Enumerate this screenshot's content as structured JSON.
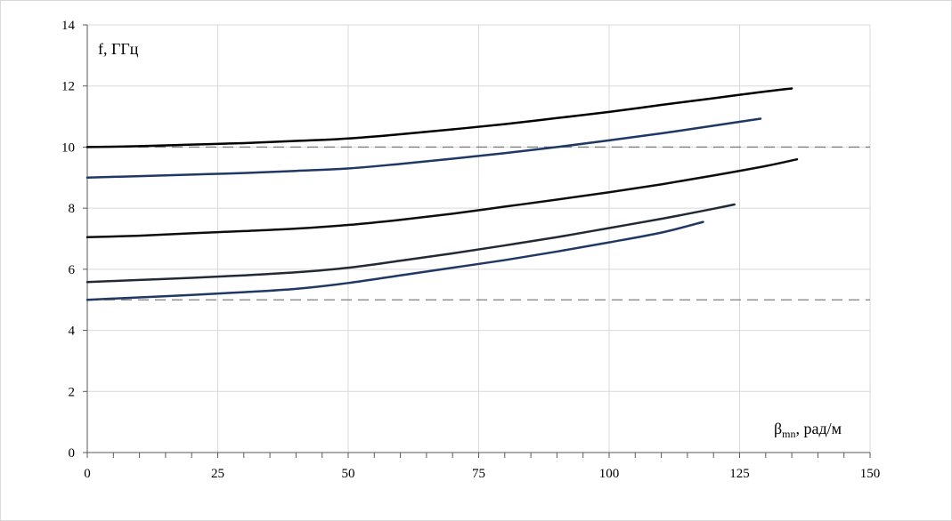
{
  "chart_data": {
    "type": "line",
    "title": "",
    "ylabel": "f, ГГц",
    "xlabel": {
      "symbol": "β",
      "subscript": "mn",
      "suffix": ", рад/м"
    },
    "xlim": [
      0,
      150
    ],
    "ylim": [
      0,
      14
    ],
    "x_ticks": [
      "0",
      "25",
      "50",
      "75",
      "100",
      "125",
      "150"
    ],
    "y_ticks": [
      "0",
      "2",
      "4",
      "6",
      "8",
      "10",
      "12",
      "14"
    ],
    "grid": true,
    "legend": "none",
    "reference_lines": [
      {
        "y": 10,
        "style": "dashed",
        "color": "#7f7f7f"
      },
      {
        "y": 5,
        "style": "dashed",
        "color": "#7f7f7f"
      }
    ],
    "series": [
      {
        "color": "#000000",
        "points": [
          [
            0,
            10.0
          ],
          [
            10,
            10.03
          ],
          [
            20,
            10.08
          ],
          [
            30,
            10.13
          ],
          [
            40,
            10.2
          ],
          [
            50,
            10.28
          ],
          [
            60,
            10.42
          ],
          [
            70,
            10.58
          ],
          [
            80,
            10.75
          ],
          [
            90,
            10.95
          ],
          [
            100,
            11.15
          ],
          [
            110,
            11.38
          ],
          [
            120,
            11.6
          ],
          [
            130,
            11.82
          ],
          [
            135,
            11.92
          ]
        ]
      },
      {
        "color": "#1f3864",
        "points": [
          [
            0,
            9.0
          ],
          [
            10,
            9.05
          ],
          [
            20,
            9.1
          ],
          [
            30,
            9.15
          ],
          [
            40,
            9.22
          ],
          [
            50,
            9.3
          ],
          [
            60,
            9.45
          ],
          [
            70,
            9.62
          ],
          [
            80,
            9.8
          ],
          [
            90,
            10.0
          ],
          [
            100,
            10.22
          ],
          [
            110,
            10.45
          ],
          [
            120,
            10.7
          ],
          [
            129,
            10.93
          ]
        ]
      },
      {
        "color": "#0d0d0d",
        "points": [
          [
            0,
            7.05
          ],
          [
            10,
            7.1
          ],
          [
            20,
            7.18
          ],
          [
            30,
            7.25
          ],
          [
            40,
            7.33
          ],
          [
            50,
            7.45
          ],
          [
            60,
            7.62
          ],
          [
            70,
            7.82
          ],
          [
            80,
            8.05
          ],
          [
            90,
            8.28
          ],
          [
            100,
            8.52
          ],
          [
            110,
            8.78
          ],
          [
            120,
            9.07
          ],
          [
            130,
            9.38
          ],
          [
            136,
            9.6
          ]
        ]
      },
      {
        "color": "#222a35",
        "points": [
          [
            0,
            5.58
          ],
          [
            10,
            5.65
          ],
          [
            20,
            5.72
          ],
          [
            30,
            5.8
          ],
          [
            40,
            5.9
          ],
          [
            50,
            6.05
          ],
          [
            60,
            6.28
          ],
          [
            70,
            6.52
          ],
          [
            80,
            6.78
          ],
          [
            90,
            7.05
          ],
          [
            100,
            7.35
          ],
          [
            110,
            7.65
          ],
          [
            120,
            7.98
          ],
          [
            124,
            8.12
          ]
        ]
      },
      {
        "color": "#1f3864",
        "points": [
          [
            0,
            5.0
          ],
          [
            10,
            5.08
          ],
          [
            20,
            5.16
          ],
          [
            30,
            5.25
          ],
          [
            40,
            5.36
          ],
          [
            50,
            5.55
          ],
          [
            60,
            5.8
          ],
          [
            70,
            6.05
          ],
          [
            80,
            6.3
          ],
          [
            90,
            6.58
          ],
          [
            100,
            6.88
          ],
          [
            110,
            7.2
          ],
          [
            118,
            7.55
          ]
        ]
      }
    ]
  }
}
